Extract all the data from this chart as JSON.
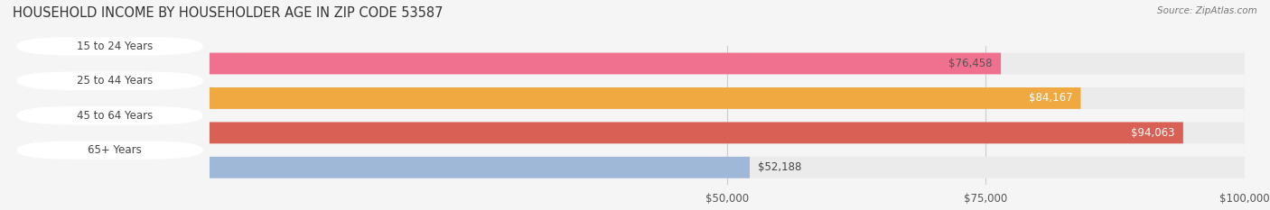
{
  "title": "HOUSEHOLD INCOME BY HOUSEHOLDER AGE IN ZIP CODE 53587",
  "source": "Source: ZipAtlas.com",
  "categories": [
    "15 to 24 Years",
    "25 to 44 Years",
    "45 to 64 Years",
    "65+ Years"
  ],
  "values": [
    76458,
    84167,
    94063,
    52188
  ],
  "bar_colors": [
    "#f07090",
    "#f0a840",
    "#d96055",
    "#a0b8d8"
  ],
  "bar_bg_color": "#ebebeb",
  "value_labels": [
    "$76,458",
    "$84,167",
    "$94,063",
    "$52,188"
  ],
  "value_label_colors": [
    "#555555",
    "#ffffff",
    "#ffffff",
    "#333333"
  ],
  "xlim_data": [
    0,
    100000
  ],
  "xticks": [
    50000,
    75000,
    100000
  ],
  "xtick_labels": [
    "$50,000",
    "$75,000",
    "$100,000"
  ],
  "background_color": "#f5f5f5",
  "title_fontsize": 10.5,
  "label_fontsize": 8.5,
  "tick_fontsize": 8.5,
  "label_pill_color": "#ffffff",
  "label_text_color": "#444444",
  "bar_height": 0.62,
  "bar_gap": 0.08
}
